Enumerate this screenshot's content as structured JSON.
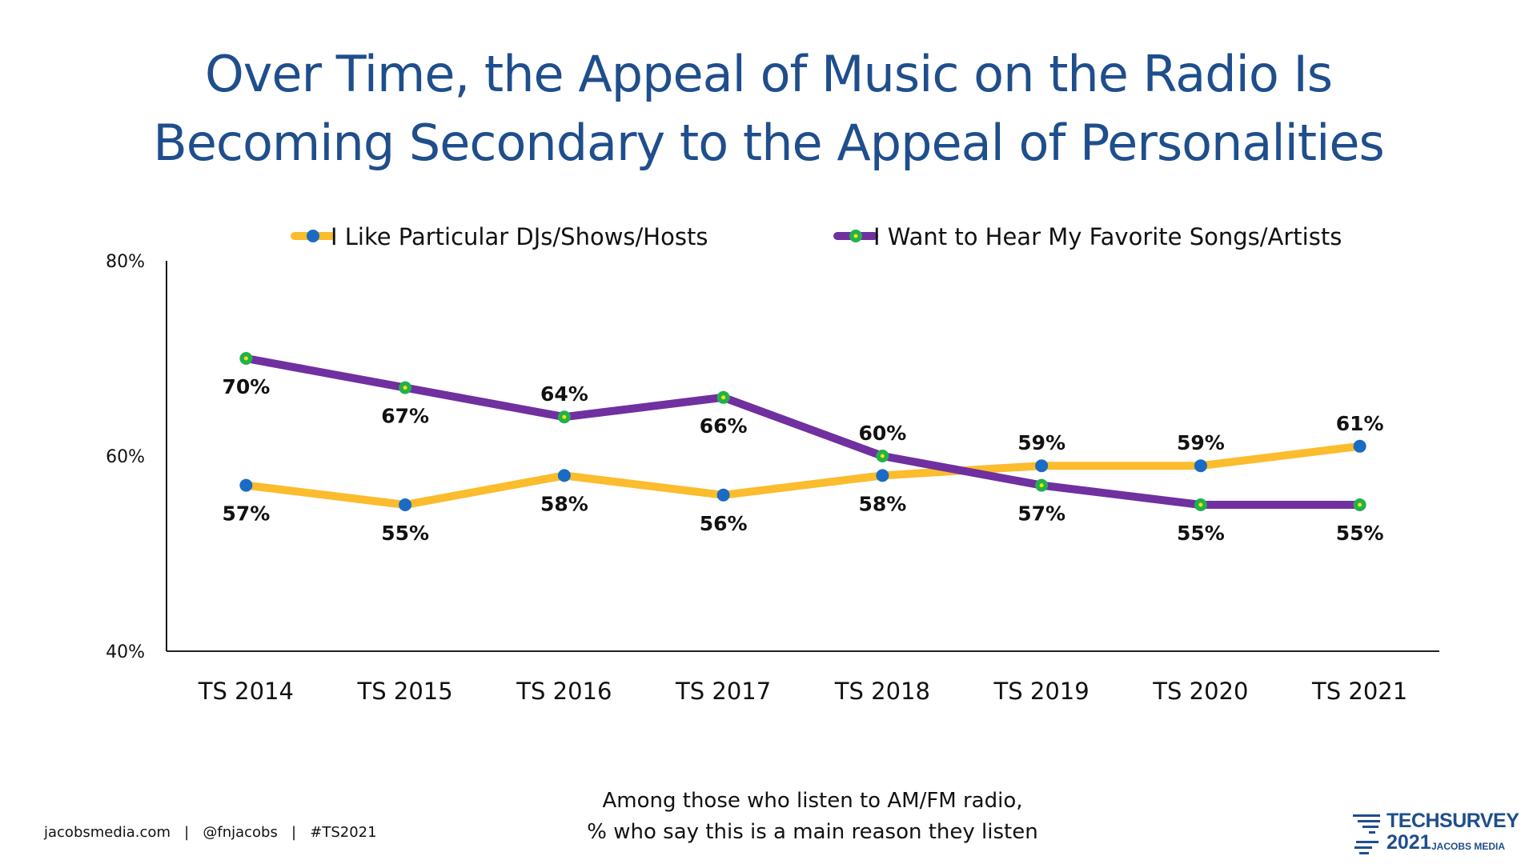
{
  "slide": {
    "title_lines": [
      "Over Time, the Appeal of Music on the Radio Is",
      "Becoming Secondary to the Appeal of Personalities"
    ],
    "subtitle_lines": [
      "Among those who listen to AM/FM radio,",
      "% who say this is a main reason they listen"
    ],
    "footer": "jacobsmedia.com   |   @fnjacobs   |   #TS2021",
    "logo": {
      "line1": "TECHSURVEY",
      "line2": "2021",
      "line3": "JACOBS MEDIA",
      "color": "#1F4E8C"
    }
  },
  "chart_data": {
    "type": "line",
    "title": "Over Time, the Appeal of Music on the Radio Is Becoming Secondary to the Appeal of Personalities",
    "xlabel": "",
    "ylabel": "",
    "categories": [
      "TS 2014",
      "TS 2015",
      "TS 2016",
      "TS 2017",
      "TS 2018",
      "TS 2019",
      "TS 2020",
      "TS 2021"
    ],
    "ylim": [
      40,
      80
    ],
    "yticks": [
      40,
      60,
      80
    ],
    "ytick_labels": [
      "40%",
      "60%",
      "80%"
    ],
    "grid": false,
    "legend_position": "top",
    "series": [
      {
        "name": "I Like Particular DJs/Shows/Hosts",
        "values": [
          57,
          55,
          58,
          56,
          58,
          59,
          59,
          61
        ],
        "labels": [
          "57%",
          "55%",
          "58%",
          "56%",
          "58%",
          "59%",
          "59%",
          "61%"
        ],
        "label_position": [
          "below",
          "below",
          "below",
          "below",
          "below",
          "above",
          "above",
          "above"
        ],
        "line_color": "#FBBC2D",
        "marker_color": "#1A6BC4",
        "marker_center_color": "#1A6BC4"
      },
      {
        "name": "I Want to Hear My Favorite Songs/Artists",
        "values": [
          70,
          67,
          64,
          66,
          60,
          57,
          55,
          55
        ],
        "labels": [
          "70%",
          "67%",
          "64%",
          "66%",
          "60%",
          "57%",
          "55%",
          "55%"
        ],
        "label_position": [
          "below",
          "below",
          "above",
          "below",
          "above",
          "below",
          "below",
          "below"
        ],
        "line_color": "#7030A0",
        "marker_color": "#22B14C",
        "marker_center_color": "#F2E600"
      }
    ]
  }
}
